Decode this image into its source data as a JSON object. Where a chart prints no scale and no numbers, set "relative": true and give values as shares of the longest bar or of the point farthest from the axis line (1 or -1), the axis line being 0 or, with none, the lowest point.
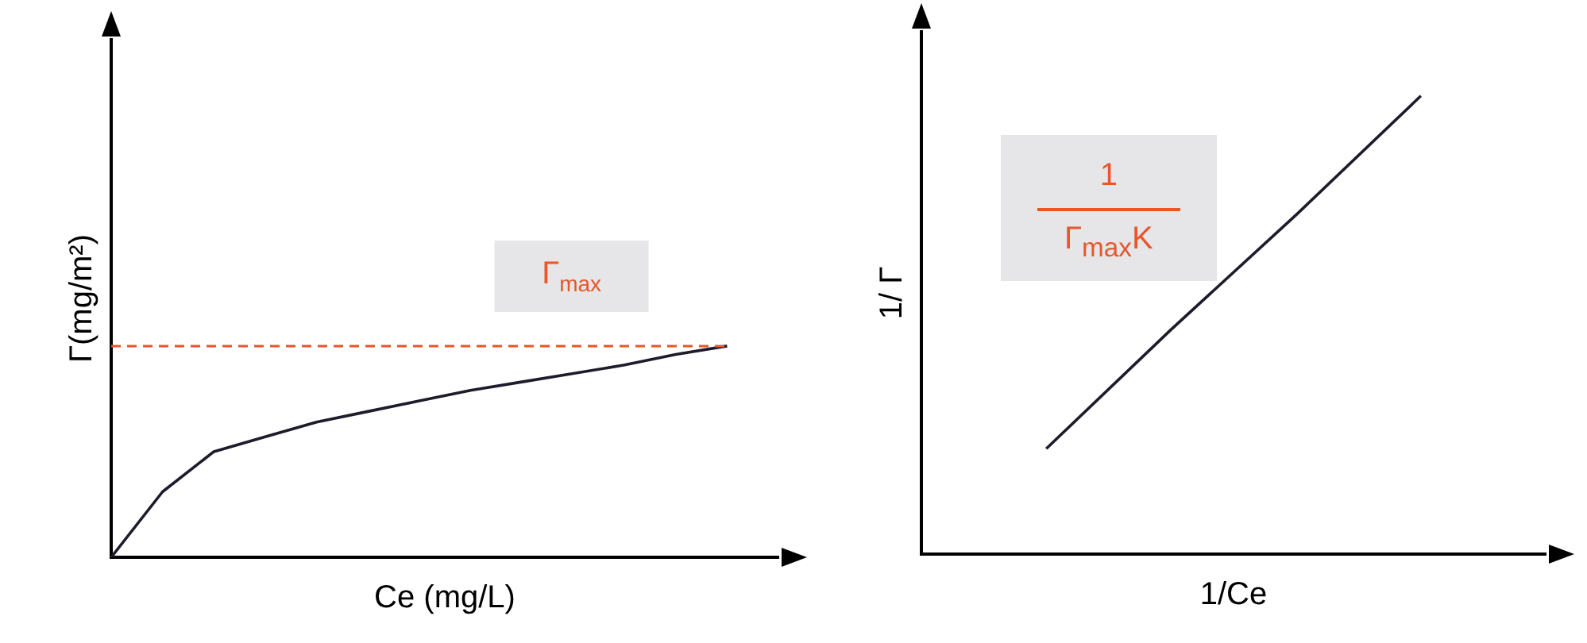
{
  "chart_data": [
    {
      "type": "line",
      "xlabel": "Ce (mg/L)",
      "ylabel": "Γ(mg/m²)",
      "relative": true,
      "categories": [
        null,
        null,
        null,
        null,
        null,
        null,
        null,
        null,
        null,
        null,
        null,
        null,
        null,
        null
      ],
      "series": [
        {
          "color": "#1c1c2c",
          "values": [
            0,
            0.31,
            0.5,
            0.57,
            0.64,
            0.69,
            0.74,
            0.79,
            0.83,
            0.87,
            0.91,
            0.96,
            1,
            null
          ]
        }
      ],
      "ref_lines": [
        {
          "axis": "y",
          "value": 1,
          "label": "Γ$_{max}$",
          "color": "#e8562a",
          "line_style": "dashed"
        }
      ],
      "marker": "none",
      "grid": false,
      "legend": false
    },
    {
      "type": "line",
      "xlabel": "1/Ce",
      "ylabel": "1/ Γ",
      "relative": true,
      "categories": [
        null,
        null,
        null,
        null,
        null,
        null
      ],
      "series": [
        {
          "color": "#1c1c2c",
          "values": [
            null,
            0.23,
            0.49,
            0.74,
            1,
            null
          ]
        }
      ],
      "annotations": [
        "1",
        "Γ$_{max}$K"
      ],
      "marker": "none",
      "grid": false,
      "legend": false
    }
  ]
}
